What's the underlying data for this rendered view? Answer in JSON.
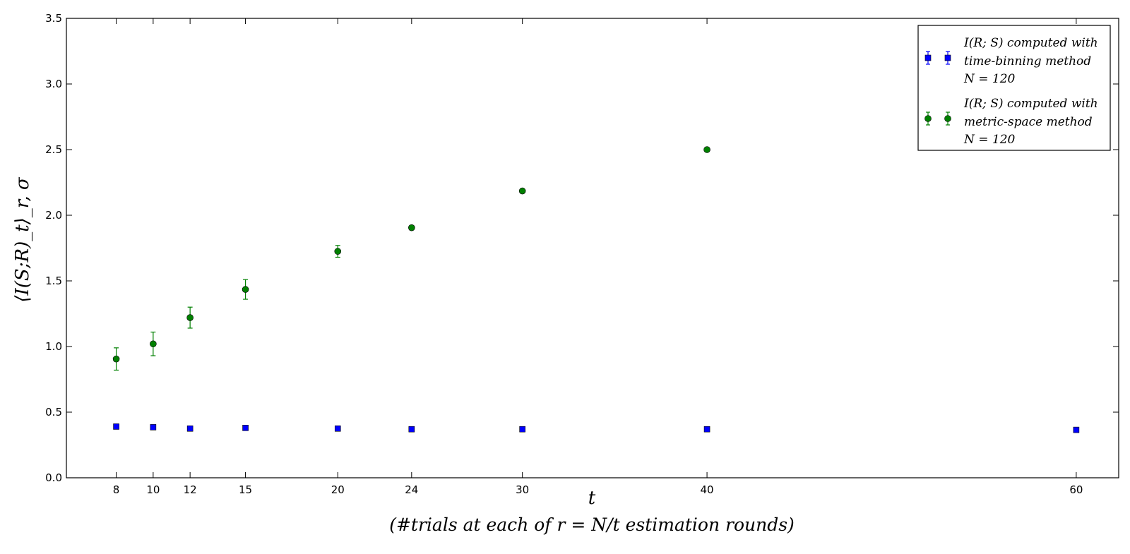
{
  "chart_data": {
    "type": "scatter",
    "title": "",
    "xlabel": "t",
    "xlabel_sub": "(#trials at each of r = N/t estimation rounds)",
    "ylabel": "⟨I(S;R)_t⟩_r, σ",
    "xlim": [
      5.3,
      62.3
    ],
    "ylim": [
      0,
      3.5
    ],
    "xticks": [
      8,
      10,
      12,
      15,
      20,
      24,
      30,
      40,
      60
    ],
    "yticks": [
      0.0,
      0.5,
      1.0,
      1.5,
      2.0,
      2.5,
      3.0,
      3.5
    ],
    "ytick_labels": [
      "0.0",
      "0.5",
      "1.0",
      "1.5",
      "2.0",
      "2.5",
      "3.0",
      "3.5"
    ],
    "grid": false,
    "legend_position": "top-right",
    "series": [
      {
        "name": "I(R;S) computed with time-binning method N=120",
        "legend_lines": [
          "I(R; S) computed with",
          "time-binning method",
          "N = 120"
        ],
        "color": "#0000ff",
        "marker": "square",
        "x": [
          8,
          10,
          12,
          15,
          20,
          24,
          30,
          40,
          60
        ],
        "y": [
          0.39,
          0.385,
          0.375,
          0.38,
          0.375,
          0.37,
          0.37,
          0.37,
          0.365
        ],
        "yerr": [
          0.01,
          0.01,
          0.008,
          0.008,
          0.006,
          0.005,
          0.005,
          0.004,
          0.0
        ]
      },
      {
        "name": "I(R;S) computed with metric-space method N=120",
        "legend_lines": [
          "I(R; S) computed with",
          "metric-space method",
          "N = 120"
        ],
        "color": "#008000",
        "marker": "circle",
        "x": [
          8,
          10,
          12,
          15,
          20,
          24,
          30
        ],
        "y": [
          0.905,
          1.02,
          1.22,
          1.435,
          1.725,
          1.905,
          2.185
        ],
        "yerr": [
          0.085,
          0.09,
          0.08,
          0.075,
          0.045,
          0.015,
          0.015
        ]
      },
      {
        "name": "",
        "color": "#008000",
        "marker": "circle",
        "x": [
          40
        ],
        "y": [
          2.5
        ],
        "yerr": [
          0.0
        ]
      }
    ]
  }
}
